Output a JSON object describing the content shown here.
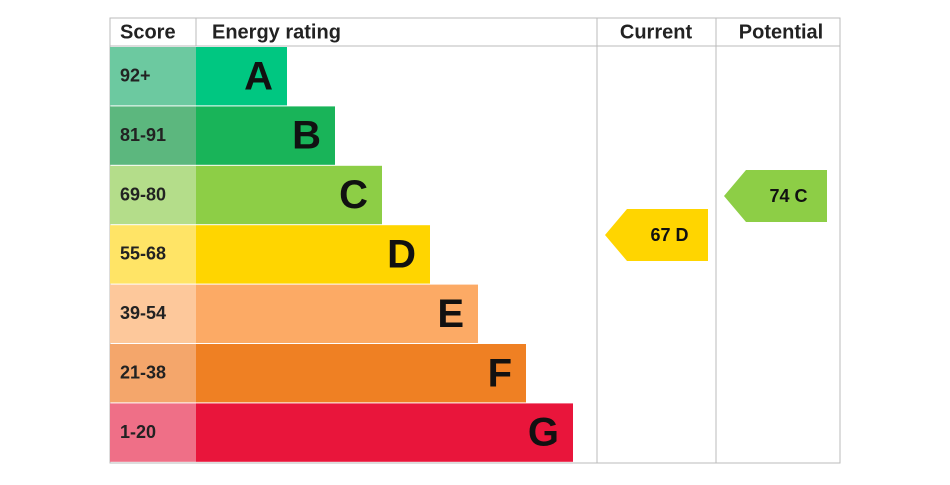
{
  "header": {
    "score": "Score",
    "rating": "Energy rating",
    "current": "Current",
    "potential": "Potential"
  },
  "bands": [
    {
      "score": "92+",
      "letter": "A"
    },
    {
      "score": "81-91",
      "letter": "B"
    },
    {
      "score": "69-80",
      "letter": "C"
    },
    {
      "score": "55-68",
      "letter": "D"
    },
    {
      "score": "39-54",
      "letter": "E"
    },
    {
      "score": "21-38",
      "letter": "F"
    },
    {
      "score": "1-20",
      "letter": "G"
    }
  ],
  "current": {
    "label": "67 D"
  },
  "potential": {
    "label": "74 C"
  }
}
